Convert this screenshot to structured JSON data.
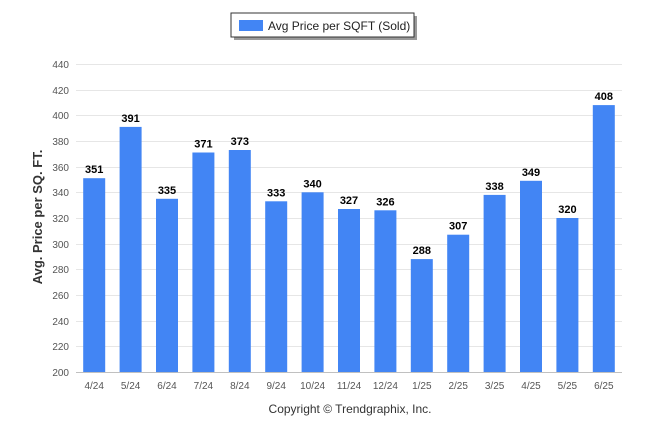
{
  "chart_data": {
    "type": "bar",
    "categories": [
      "4/24",
      "5/24",
      "6/24",
      "7/24",
      "8/24",
      "9/24",
      "10/24",
      "11/24",
      "12/24",
      "1/25",
      "2/25",
      "3/25",
      "4/25",
      "5/25",
      "6/25"
    ],
    "series": [
      {
        "name": "Avg Price per SQFT (Sold)",
        "color": "#4285f4",
        "values": [
          351,
          391,
          335,
          371,
          373,
          333,
          340,
          327,
          326,
          288,
          307,
          338,
          349,
          320,
          408
        ]
      }
    ],
    "ylabel": "Avg. Price per SQ. FT.",
    "xlabel": "",
    "ylim": [
      200,
      440
    ],
    "yticks": [
      200,
      220,
      240,
      260,
      280,
      300,
      320,
      340,
      360,
      380,
      400,
      420,
      440
    ],
    "grid": true,
    "legend": "top-center",
    "data_labels": true
  },
  "credits": "Copyright © Trendgraphix, Inc."
}
